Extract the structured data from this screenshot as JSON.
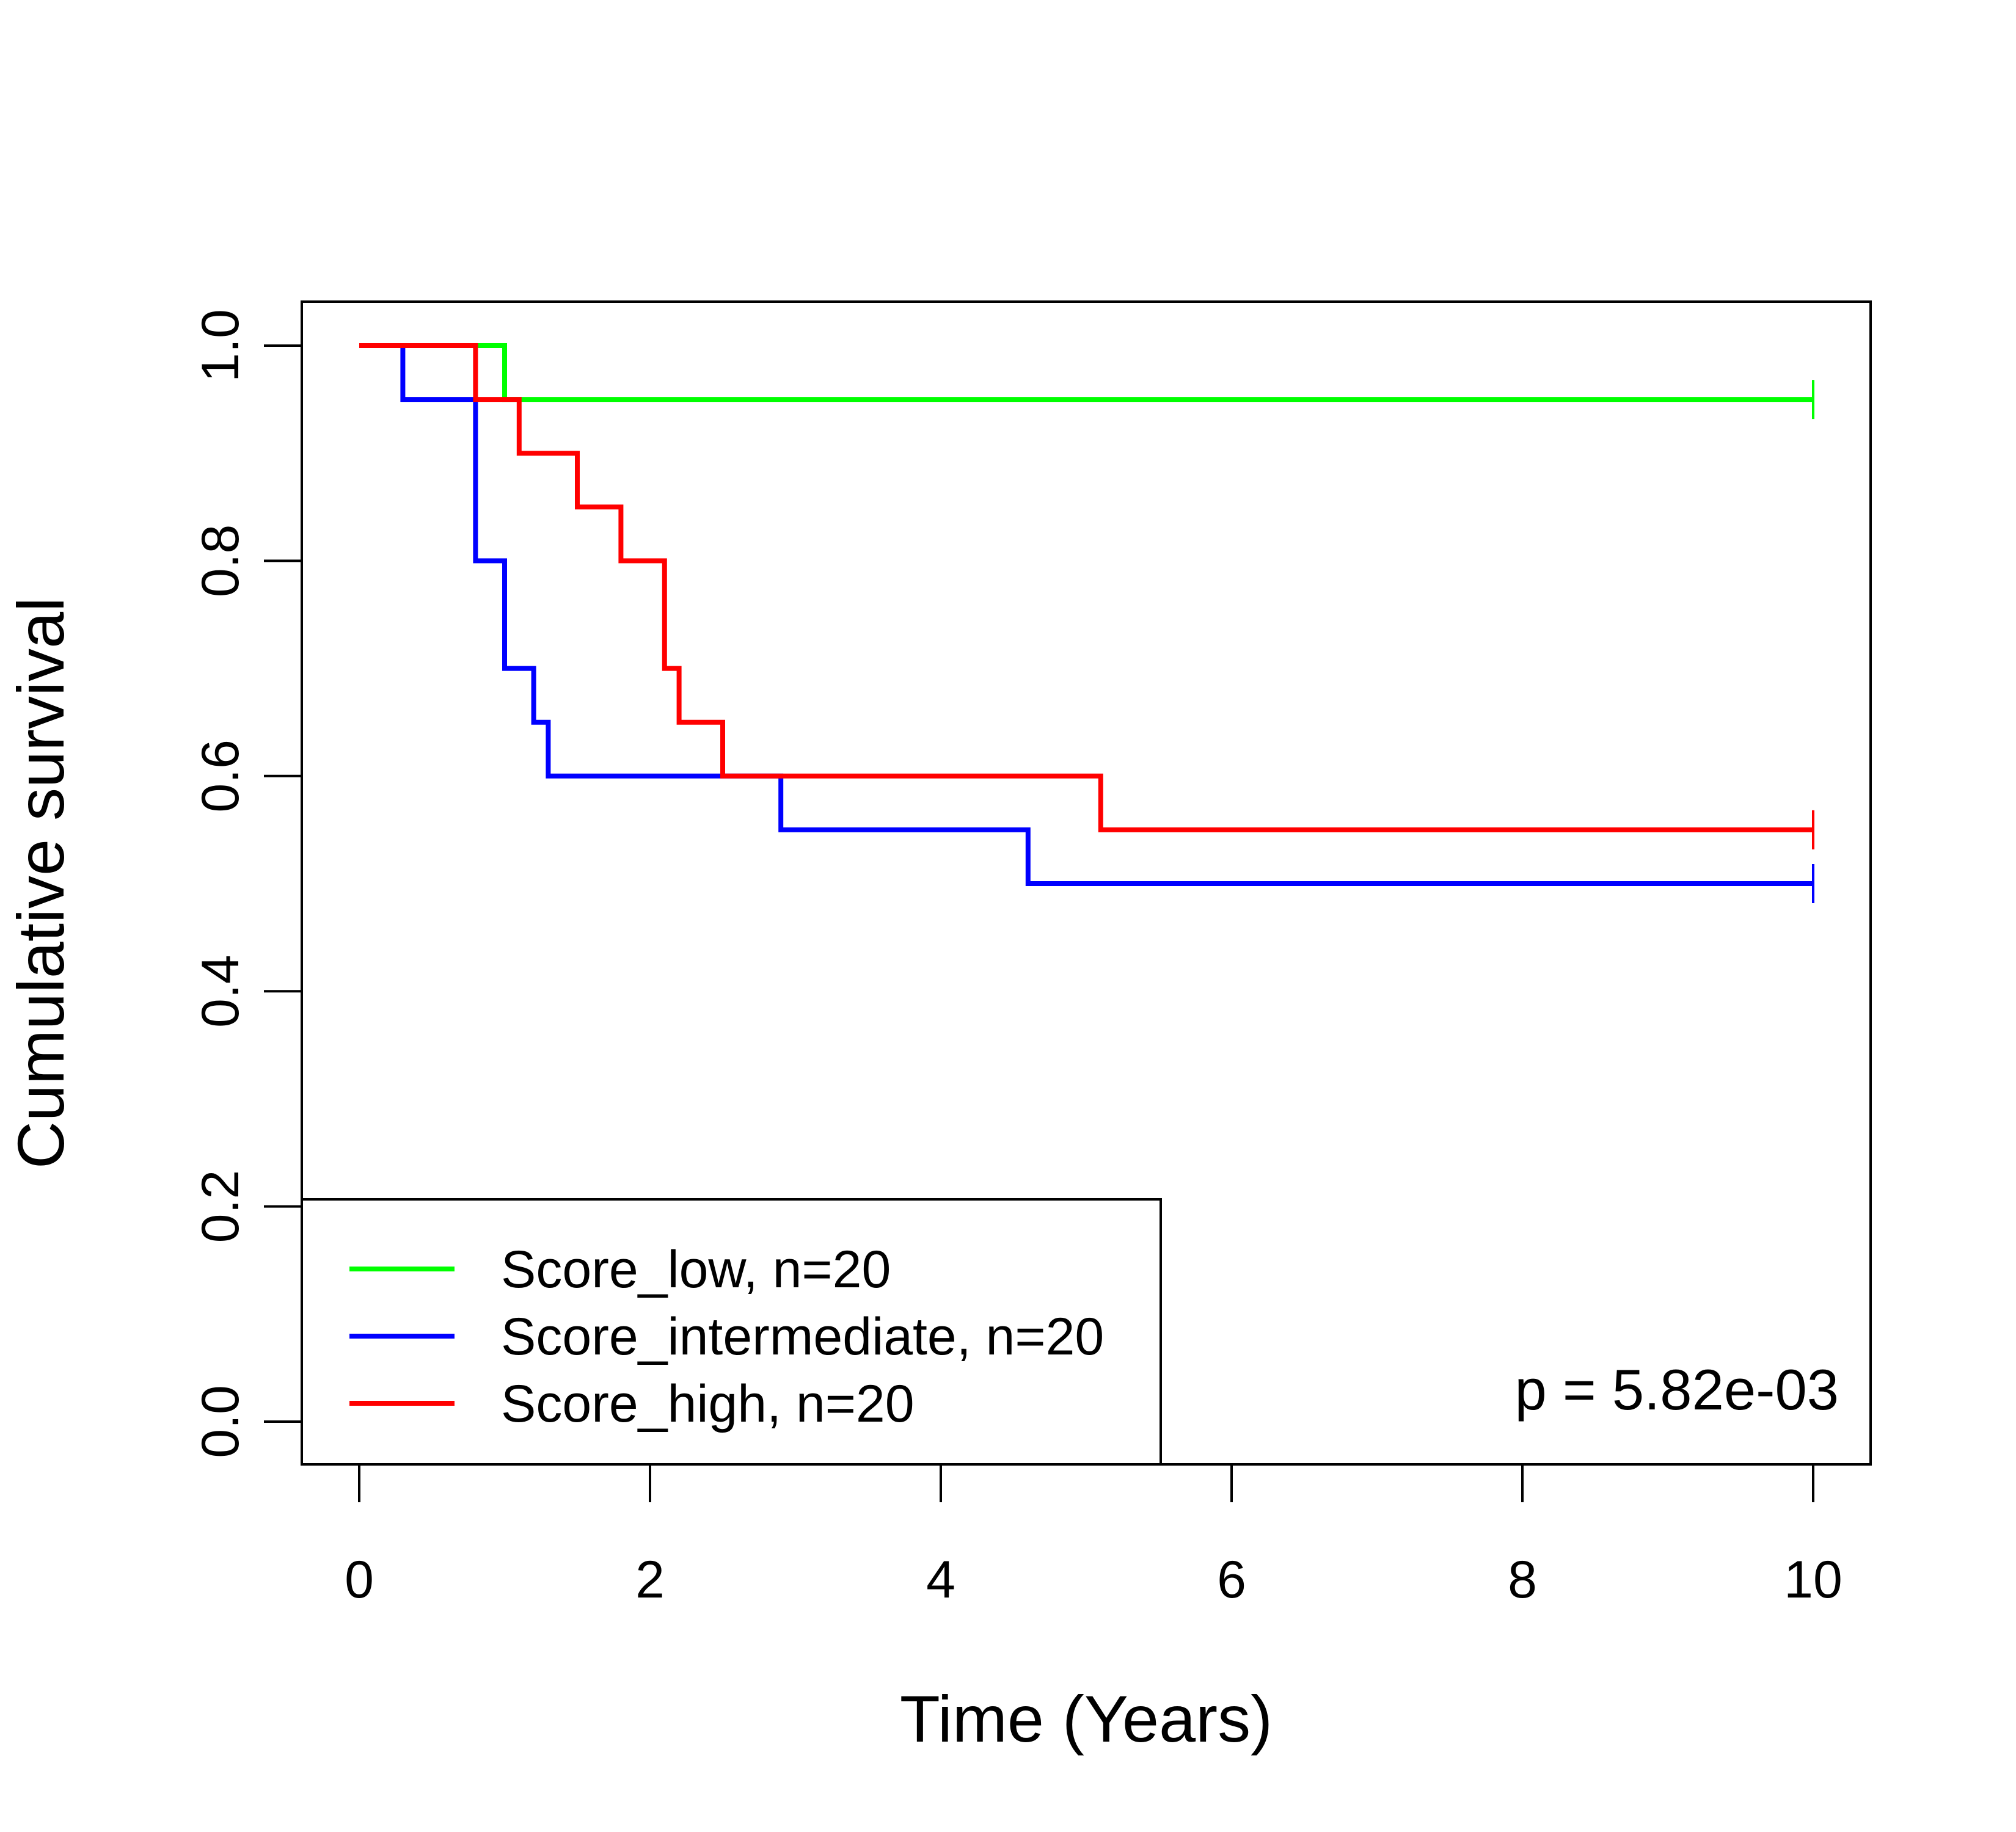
{
  "chart_data": {
    "type": "line",
    "step": true,
    "xlabel": "Time (Years)",
    "ylabel": "Cumulative survival",
    "xlim": [
      0,
      10
    ],
    "ylim": [
      0,
      1
    ],
    "x_ticks": [
      "0",
      "2",
      "4",
      "6",
      "8",
      "10"
    ],
    "y_ticks": [
      "0.0",
      "0.2",
      "0.4",
      "0.6",
      "0.8",
      "1.0"
    ],
    "grid": false,
    "legend_position": "bottom-left",
    "annotation": "p = 5.82e-03",
    "series": [
      {
        "name": "Score_low, n=20",
        "color": "#00FF00",
        "times": [
          1.0
        ],
        "survival": [
          1.0,
          0.95
        ],
        "end_time": 10,
        "censored_at": [
          10
        ]
      },
      {
        "name": "Score_intermediate, n=20",
        "color": "#0000FF",
        "times": [
          0.3,
          0.8,
          1.0,
          1.2,
          1.3,
          2.9,
          4.6
        ],
        "survival": [
          1.0,
          0.95,
          0.8,
          0.7,
          0.65,
          0.6,
          0.55,
          0.5
        ],
        "end_time": 10,
        "censored_at": [
          10
        ]
      },
      {
        "name": "Score_high, n=20",
        "color": "#FF0000",
        "times": [
          0.8,
          1.1,
          1.5,
          1.8,
          2.1,
          2.2,
          2.5,
          5.1
        ],
        "survival": [
          1.0,
          0.95,
          0.9,
          0.85,
          0.8,
          0.7,
          0.65,
          0.6,
          0.55
        ],
        "end_time": 10,
        "censored_at": [
          10
        ]
      }
    ]
  }
}
